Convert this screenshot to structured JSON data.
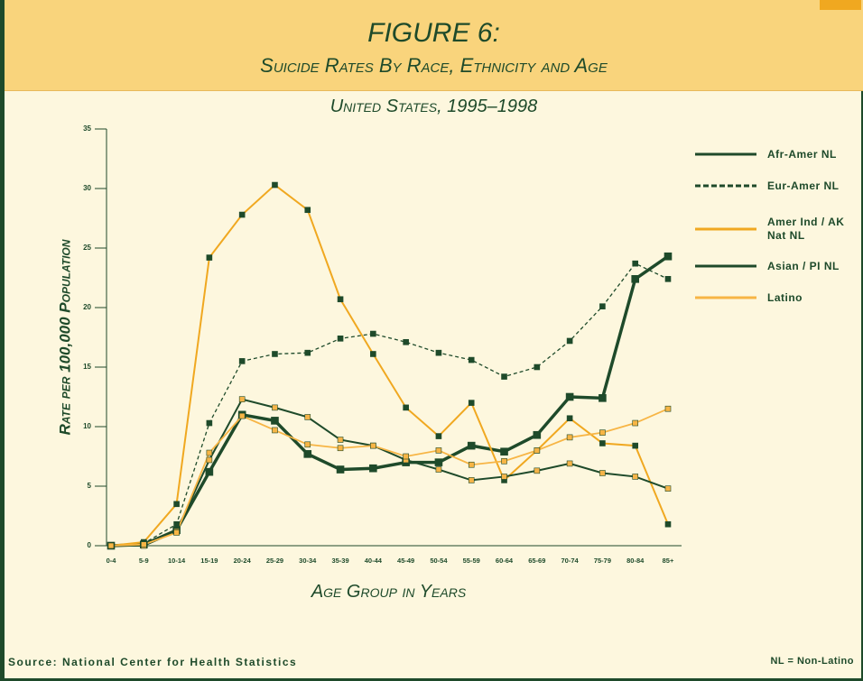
{
  "chart_data": {
    "type": "line",
    "title": "FIGURE 6:",
    "subtitle": "Suicide Rates By Race, Ethnicity and Age",
    "caption": "United States, 1995–1998",
    "y_label": "Rate per 100,000 Population",
    "x_label": "Age Group in Years",
    "source": "Source: National Center for Health Statistics",
    "note": "NL = Non-Latino",
    "categories": [
      "0-4",
      "5-9",
      "10-14",
      "15-19",
      "20-24",
      "25-29",
      "30-34",
      "35-39",
      "40-44",
      "45-49",
      "50-54",
      "55-59",
      "60-64",
      "65-69",
      "70-74",
      "75-79",
      "80-84",
      "85+"
    ],
    "ylim": [
      0,
      35
    ],
    "yticks": [
      0,
      5,
      10,
      15,
      20,
      25,
      30,
      35
    ],
    "grid": false,
    "legend": "right",
    "series": [
      {
        "name": "Afr-Amer NL",
        "color": "#1e4a2a",
        "marker_color": "#1e4a2a",
        "line_style": "solid",
        "values": [
          0,
          0.1,
          1.3,
          6.2,
          11.0,
          10.5,
          7.7,
          6.4,
          6.5,
          7.0,
          7.0,
          8.4,
          7.9,
          9.3,
          12.5,
          12.4,
          22.4,
          24.3
        ]
      },
      {
        "name": "Eur-Amer NL",
        "color": "#1e4a2a",
        "marker_color": "#1e4a2a",
        "line_style": "dashed",
        "values": [
          0,
          0.2,
          1.8,
          10.3,
          15.5,
          16.1,
          16.2,
          17.4,
          17.8,
          17.1,
          16.2,
          15.6,
          14.2,
          15.0,
          17.2,
          20.1,
          23.7,
          22.4
        ]
      },
      {
        "name": "Amer Ind / AK Nat NL",
        "color": "#f0a820",
        "marker_color": "#1e4a2a",
        "line_style": "solid",
        "values": [
          0,
          0.3,
          3.5,
          24.2,
          27.8,
          30.3,
          28.2,
          20.7,
          16.1,
          11.6,
          9.2,
          12.0,
          5.5,
          8.0,
          10.7,
          8.6,
          8.4,
          1.8
        ]
      },
      {
        "name": "Asian / PI NL",
        "color": "#1e4a2a",
        "marker_color": "#f5b449",
        "line_style": "solid",
        "values": [
          0,
          0,
          1.2,
          7.2,
          12.3,
          11.6,
          10.8,
          8.9,
          8.4,
          7.2,
          6.4,
          5.5,
          5.8,
          6.3,
          6.9,
          6.1,
          5.8,
          4.8
        ]
      },
      {
        "name": "Latino",
        "color": "#f7b545",
        "marker_color": "#f7b545",
        "line_style": "solid",
        "values": [
          0,
          0.1,
          1.1,
          7.8,
          10.9,
          9.7,
          8.5,
          8.2,
          8.4,
          7.5,
          8.0,
          6.8,
          7.1,
          8.0,
          9.1,
          9.5,
          10.3,
          11.5
        ]
      }
    ]
  }
}
